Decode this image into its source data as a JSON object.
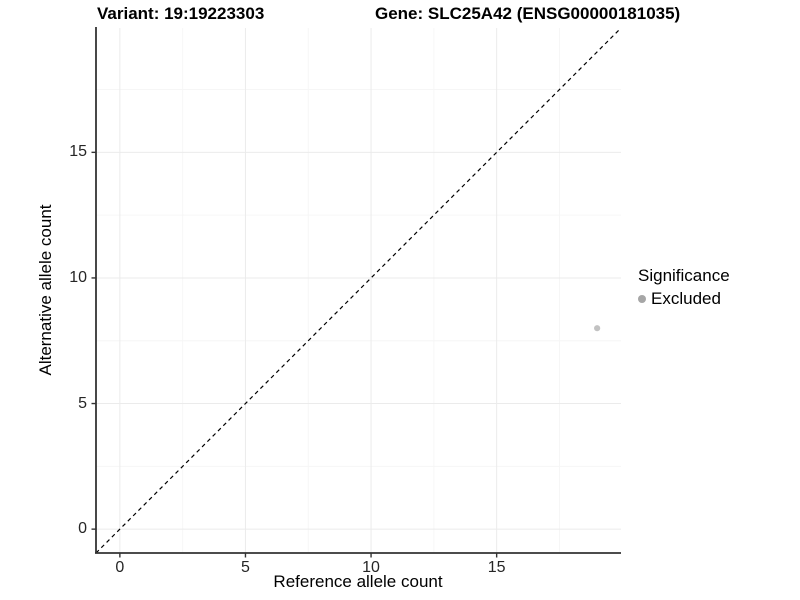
{
  "chart_data": {
    "type": "scatter",
    "titles": {
      "variant": "Variant: 19:19223303",
      "gene": "Gene: SLC25A42 (ENSG00000181035)"
    },
    "xlabel": "Reference allele count",
    "ylabel": "Alternative allele count",
    "xlim": [
      -0.95,
      19.95
    ],
    "ylim": [
      -0.95,
      19.95
    ],
    "x_ticks": [
      0,
      5,
      10,
      15
    ],
    "y_ticks": [
      0,
      5,
      10,
      15
    ],
    "minor_grid_step": 2.5,
    "grid": "major and minor gridlines on white background",
    "identity_line": {
      "slope": 1,
      "intercept": 0,
      "style": "dashed",
      "color": "#000000"
    },
    "series": [
      {
        "name": "Excluded",
        "marker": "circle",
        "color": "#c2c2c2",
        "points": [
          {
            "x": 19,
            "y": 8
          }
        ]
      }
    ],
    "legend": {
      "title": "Significance",
      "position": "right",
      "entries": [
        {
          "label": "Excluded",
          "color": "#a6a6a6",
          "marker": "circle"
        }
      ]
    }
  },
  "colors": {
    "background": "#ffffff",
    "grid_major": "#ebebeb",
    "grid_minor": "#f6f6f6",
    "axis_line": "#333333",
    "tick_mark": "#333333",
    "tick_text": "#262626"
  }
}
